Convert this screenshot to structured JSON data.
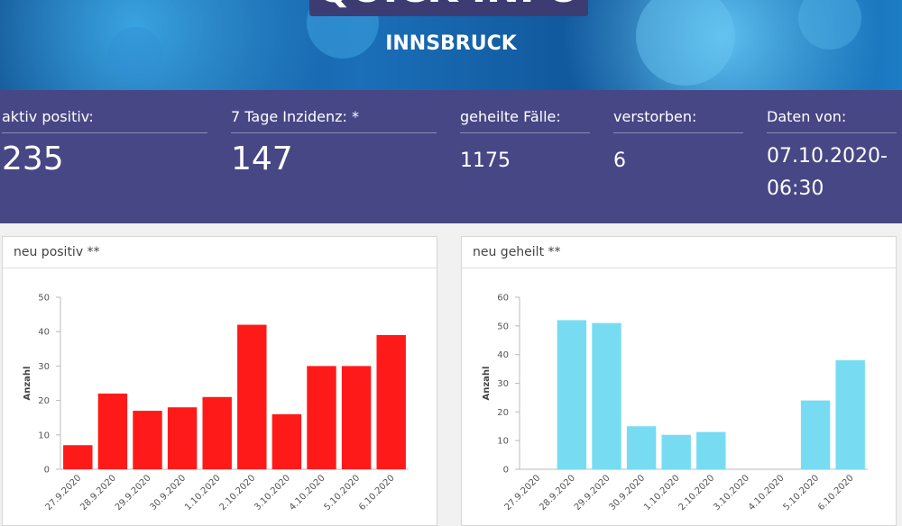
{
  "header": {
    "title": "QUICK INFO",
    "subtitle": "INNSBRUCK"
  },
  "stats": [
    {
      "label": "aktiv positiv:",
      "value": 235
    },
    {
      "label": "7 Tage Inzidenz: *",
      "value": 147
    },
    {
      "label": "geheilte Fälle:",
      "value": 1175
    },
    {
      "label": "verstorben:",
      "value": 6
    },
    {
      "label": "Daten von:",
      "value": "07.10.2020-06:30"
    }
  ],
  "chart_data": [
    {
      "type": "bar",
      "title": "neu positiv **",
      "y_label": "Anzahl",
      "categories": [
        "27.9.2020",
        "28.9.2020",
        "29.9.2020",
        "30.9.2020",
        "1.10.2020",
        "2.10.2020",
        "3.10.2020",
        "4.10.2020",
        "5.10.2020",
        "6.10.2020"
      ],
      "values": [
        7,
        22,
        17,
        18,
        21,
        42,
        16,
        30,
        30,
        39
      ],
      "color": "#ff1a1a",
      "ylim": [
        0,
        50
      ],
      "yticks": [
        0,
        10,
        20,
        30,
        40,
        50
      ],
      "grid": false
    },
    {
      "type": "bar",
      "title": "neu geheilt **",
      "y_label": "Anzahl",
      "categories": [
        "27.9.2020",
        "28.9.2020",
        "29.9.2020",
        "30.9.2020",
        "1.10.2020",
        "2.10.2020",
        "3.10.2020",
        "4.10.2020",
        "5.10.2020",
        "6.10.2020"
      ],
      "values": [
        0,
        52,
        51,
        15,
        12,
        13,
        0,
        0,
        24,
        38
      ],
      "color": "#77dcf2",
      "ylim": [
        0,
        60
      ],
      "yticks": [
        0,
        10,
        20,
        30,
        40,
        50,
        60
      ],
      "grid": false
    }
  ]
}
